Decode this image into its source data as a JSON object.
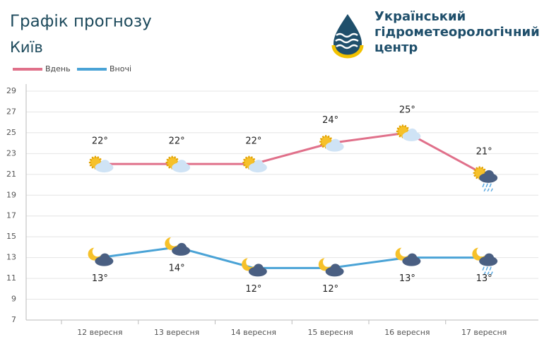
{
  "chart_data": {
    "type": "line",
    "title": "Графік прогнозу",
    "subtitle": "Київ",
    "logo_text": [
      "Український",
      "гідрометеорологічний",
      "центр"
    ],
    "categories": [
      "12 вересня",
      "13 вересня",
      "14 вересня",
      "15 вересня",
      "16 вересня",
      "17 вересня"
    ],
    "series": [
      {
        "name": "Вдень",
        "color": "#e0708a",
        "values": [
          22,
          22,
          22,
          24,
          25,
          21
        ],
        "value_labels": [
          "22°",
          "22°",
          "22°",
          "24°",
          "25°",
          "21°"
        ]
      },
      {
        "name": "Вночі",
        "color": "#4aa3d6",
        "values": [
          13,
          14,
          12,
          12,
          13,
          13
        ],
        "value_labels": [
          "13°",
          "14°",
          "12°",
          "12°",
          "13°",
          "13°"
        ]
      }
    ],
    "ylim": [
      7,
      29
    ],
    "yticks": [
      7,
      9,
      11,
      13,
      15,
      17,
      19,
      21,
      23,
      25,
      27,
      29
    ],
    "grid": true,
    "legend": "top-left"
  }
}
